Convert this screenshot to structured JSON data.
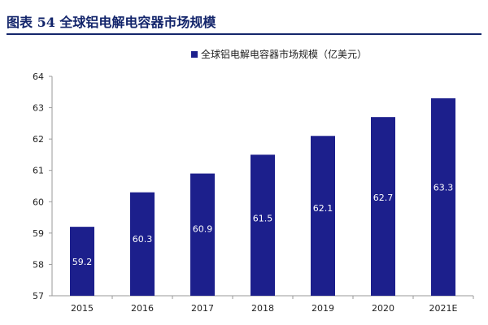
{
  "figure": {
    "title": "图表 54   全球铝电解电容器市场规模"
  },
  "colors": {
    "bar": "#1c1f8c",
    "title": "#13256b",
    "axis": "#9a9a9a"
  },
  "chart_data": {
    "type": "bar",
    "categories": [
      "2015",
      "2016",
      "2017",
      "2018",
      "2019",
      "2020",
      "2021E"
    ],
    "series": [
      {
        "name": "全球铝电解电容器市场规模（亿美元）",
        "values": [
          59.2,
          60.3,
          60.9,
          61.5,
          62.1,
          62.7,
          63.3
        ]
      }
    ],
    "data_labels": [
      "59.2",
      "60.3",
      "60.9",
      "61.5",
      "62.1",
      "62.7",
      "63.3"
    ],
    "ylim": [
      57,
      64
    ],
    "yticks": [
      "57",
      "58",
      "59",
      "60",
      "61",
      "62",
      "63",
      "64"
    ],
    "grid": false,
    "legend_position": "top-center"
  }
}
